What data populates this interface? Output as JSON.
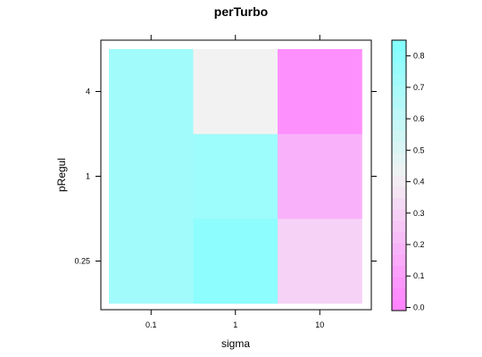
{
  "chart_data": {
    "type": "heatmap",
    "title": "perTurbo",
    "xlabel": "sigma",
    "ylabel": "pRegul",
    "x_categories": [
      "0.1",
      "1",
      "10"
    ],
    "y_categories": [
      "0.25",
      "1",
      "4"
    ],
    "values": [
      [
        0.72,
        0.8,
        0.3
      ],
      [
        0.72,
        0.74,
        0.18
      ],
      [
        0.72,
        0.42,
        0.05
      ]
    ],
    "values_note_order": "rows follow y_categories, columns follow x_categories",
    "colorbar": {
      "ticks": [
        "0.0",
        "0.1",
        "0.2",
        "0.3",
        "0.4",
        "0.5",
        "0.6",
        "0.7",
        "0.8"
      ],
      "range": [
        -0.01,
        0.85
      ],
      "low_color": "#ff80ff",
      "mid_color": "#f2f2f2",
      "high_color": "#80ffff"
    },
    "grid": false,
    "legend_placement": "right"
  }
}
